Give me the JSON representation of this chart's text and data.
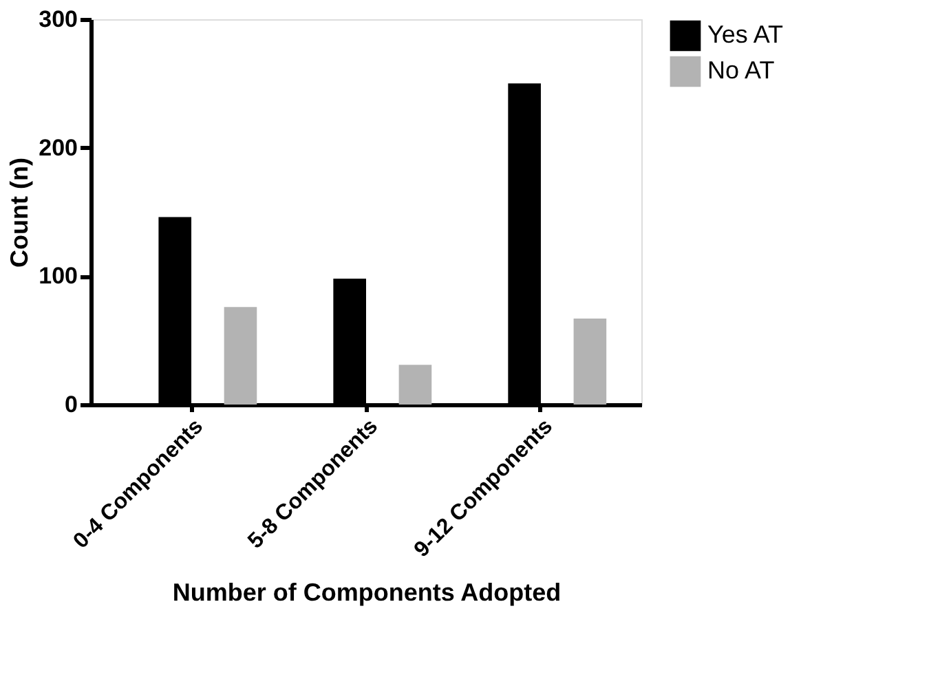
{
  "chart_data": {
    "type": "bar",
    "xlabel": "Number of Components Adopted",
    "ylabel": "Count (n)",
    "categories": [
      "0-4 Components",
      "5-8 Components",
      "9-12 Components"
    ],
    "series": [
      {
        "name": "Yes AT",
        "color": "#000000",
        "values": [
          146,
          98,
          250
        ]
      },
      {
        "name": "No AT",
        "color": "#b3b3b3",
        "values": [
          76,
          31,
          67
        ]
      }
    ],
    "ylim": [
      0,
      300
    ],
    "yticks": [
      0,
      100,
      200,
      300
    ],
    "grid": false,
    "legend": "top right"
  }
}
